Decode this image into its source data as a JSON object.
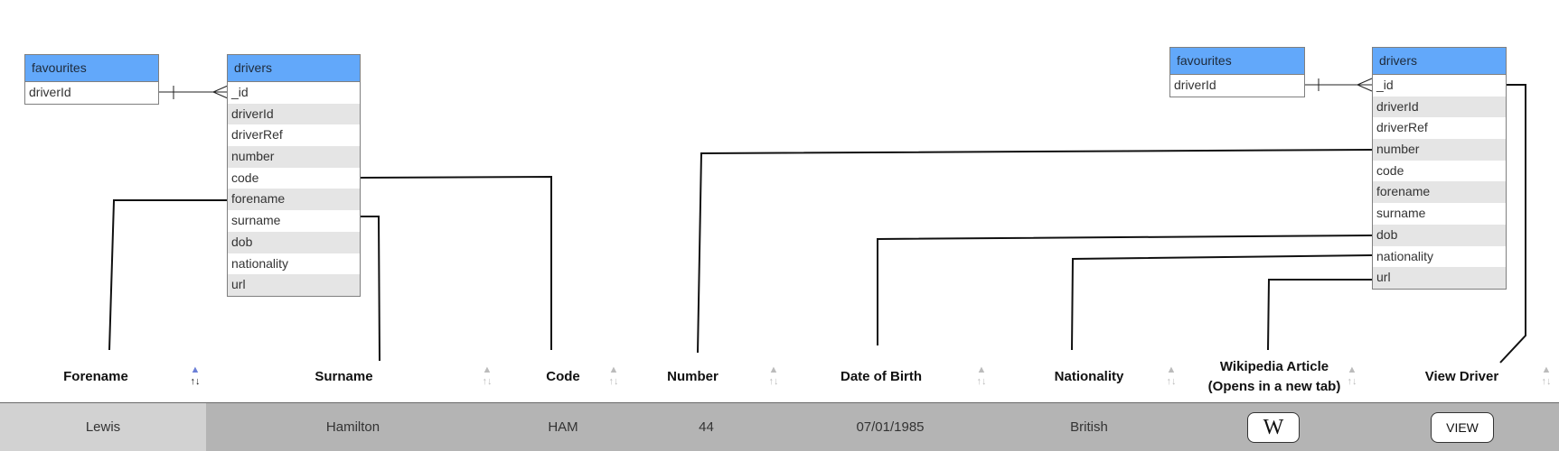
{
  "diagram_left": {
    "favourites": {
      "title": "favourites",
      "fields": [
        "driverId"
      ]
    },
    "drivers": {
      "title": "drivers",
      "fields": [
        "_id",
        "driverId",
        "driverRef",
        "number",
        "code",
        "forename",
        "surname",
        "dob",
        "nationality",
        "url"
      ]
    }
  },
  "diagram_right": {
    "favourites": {
      "title": "favourites",
      "fields": [
        "driverId"
      ]
    },
    "drivers": {
      "title": "drivers",
      "fields": [
        "_id",
        "driverId",
        "driverRef",
        "number",
        "code",
        "forename",
        "surname",
        "dob",
        "nationality",
        "url"
      ]
    }
  },
  "table": {
    "columns": [
      {
        "label": "Forename",
        "sorted": "asc"
      },
      {
        "label": "Surname",
        "sorted": "none"
      },
      {
        "label": "Code",
        "sorted": "none"
      },
      {
        "label": "Number",
        "sorted": "none"
      },
      {
        "label": "Date of Birth",
        "sorted": "none"
      },
      {
        "label": "Nationality",
        "sorted": "none"
      },
      {
        "label": "Wikipedia Article",
        "label_line2": "(Opens in a new tab)",
        "sorted": "none"
      },
      {
        "label": "View Driver",
        "sorted": "none"
      }
    ],
    "row": {
      "forename": "Lewis",
      "surname": "Hamilton",
      "code": "HAM",
      "number": "44",
      "dob": "07/01/1985",
      "nationality": "British",
      "wiki_button": "W",
      "view_button": "VIEW"
    }
  },
  "colors": {
    "header_blue": "#62a8fa",
    "row_grey": "#b4b4b4",
    "first_cell": "#d2d2d2",
    "alt_row": "#e5e5e5"
  },
  "icons": {
    "sort": "sort-arrows-icon",
    "sort_active": "sort-asc-icon"
  }
}
